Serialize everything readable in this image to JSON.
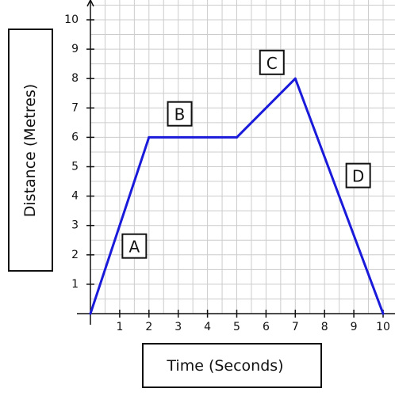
{
  "chart_data": {
    "type": "line",
    "xlabel": "Time (Seconds)",
    "ylabel": "Distance (Metres)",
    "xlim": [
      0,
      10
    ],
    "ylim": [
      0,
      10
    ],
    "x_ticks": [
      "1",
      "2",
      "3",
      "4",
      "5",
      "6",
      "7",
      "8",
      "9",
      "10"
    ],
    "y_ticks": [
      "1",
      "2",
      "3",
      "4",
      "5",
      "6",
      "7",
      "8",
      "9",
      "10"
    ],
    "grid": true,
    "series": [
      {
        "x": [
          0,
          2,
          5,
          7,
          10
        ],
        "y": [
          0,
          6,
          6,
          8,
          0
        ]
      }
    ],
    "annotations": [
      {
        "text": "A",
        "x": 1.5,
        "y": 2.3
      },
      {
        "text": "B",
        "x": 3.05,
        "y": 6.8
      },
      {
        "text": "C",
        "x": 6.2,
        "y": 8.55
      },
      {
        "text": "D",
        "x": 9.15,
        "y": 4.7
      }
    ],
    "colors": {
      "line": "#1a1adb",
      "grid": "#cccccc",
      "axis": "#111111"
    }
  }
}
